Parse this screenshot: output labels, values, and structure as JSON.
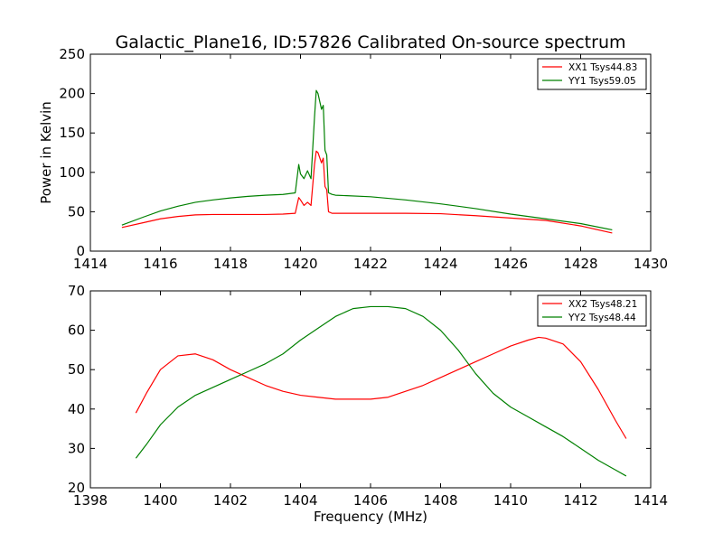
{
  "title": "Galactic_Plane16, ID:57826 Calibrated On-source spectrum",
  "chart_data": [
    {
      "type": "line",
      "title": "Galactic_Plane16, ID:57826 Calibrated On-source spectrum",
      "xlabel": "",
      "ylabel": "Power in Kelvin",
      "xlim": [
        1414,
        1430
      ],
      "ylim": [
        0,
        250
      ],
      "xticks": [
        "1414",
        "1416",
        "1418",
        "1420",
        "1422",
        "1424",
        "1426",
        "1428",
        "1430"
      ],
      "yticks": [
        "0",
        "50",
        "100",
        "150",
        "200",
        "250"
      ],
      "grid": false,
      "legend_position": "top-right",
      "series": [
        {
          "name": "XX1 Tsys44.83",
          "color": "#ff0000",
          "x": [
            1414.9,
            1415.5,
            1416.0,
            1416.5,
            1417.0,
            1417.5,
            1418.0,
            1418.5,
            1419.0,
            1419.5,
            1419.85,
            1419.95,
            1420.0,
            1420.1,
            1420.2,
            1420.3,
            1420.4,
            1420.45,
            1420.5,
            1420.6,
            1420.65,
            1420.7,
            1420.75,
            1420.8,
            1420.9,
            1421.0,
            1422.0,
            1423.0,
            1424.0,
            1425.0,
            1426.0,
            1427.0,
            1428.0,
            1428.9
          ],
          "y": [
            30,
            36,
            41,
            44,
            46,
            46.5,
            46.5,
            46.5,
            46.5,
            47,
            48,
            68,
            65,
            58,
            62,
            58,
            110,
            127,
            125,
            112,
            118,
            82,
            78,
            50,
            48,
            48,
            48,
            48,
            47.5,
            45,
            42,
            39,
            32,
            23
          ]
        },
        {
          "name": "YY1 Tsys59.05",
          "color": "#008000",
          "x": [
            1414.9,
            1415.5,
            1416.0,
            1416.5,
            1417.0,
            1417.5,
            1418.0,
            1418.5,
            1419.0,
            1419.5,
            1419.85,
            1419.95,
            1420.0,
            1420.1,
            1420.2,
            1420.3,
            1420.4,
            1420.45,
            1420.5,
            1420.6,
            1420.65,
            1420.7,
            1420.75,
            1420.8,
            1420.9,
            1421.0,
            1422.0,
            1423.0,
            1424.0,
            1425.0,
            1426.0,
            1427.0,
            1428.0,
            1428.9
          ],
          "y": [
            33,
            43,
            51,
            57,
            62,
            65,
            67.5,
            69.5,
            71,
            72,
            74,
            110,
            98,
            92,
            102,
            92,
            170,
            204,
            200,
            180,
            185,
            128,
            122,
            74,
            72,
            71,
            69,
            65,
            60,
            54,
            47,
            41,
            35,
            27
          ]
        }
      ]
    },
    {
      "type": "line",
      "title": "",
      "xlabel": "Frequency (MHz)",
      "ylabel": "",
      "xlim": [
        1398,
        1414
      ],
      "ylim": [
        20,
        70
      ],
      "xticks": [
        "1398",
        "1400",
        "1402",
        "1404",
        "1406",
        "1408",
        "1410",
        "1412",
        "1414"
      ],
      "yticks": [
        "20",
        "30",
        "40",
        "50",
        "60",
        "70"
      ],
      "grid": false,
      "legend_position": "top-right",
      "series": [
        {
          "name": "XX2 Tsys48.21",
          "color": "#ff0000",
          "x": [
            1399.3,
            1399.6,
            1400.0,
            1400.5,
            1401.0,
            1401.5,
            1402.0,
            1402.5,
            1403.0,
            1403.5,
            1404.0,
            1404.5,
            1405.0,
            1405.5,
            1406.0,
            1406.5,
            1407.0,
            1407.5,
            1408.0,
            1408.5,
            1409.0,
            1409.5,
            1410.0,
            1410.5,
            1410.8,
            1411.0,
            1411.5,
            1412.0,
            1412.5,
            1413.0,
            1413.3
          ],
          "y": [
            39,
            44,
            50,
            53.5,
            54,
            52.5,
            50,
            48,
            46,
            44.5,
            43.5,
            43,
            42.5,
            42.5,
            42.5,
            43,
            44.5,
            46,
            48,
            50,
            52,
            54,
            56,
            57.5,
            58.2,
            58,
            56.5,
            52,
            45,
            37,
            32.5
          ]
        },
        {
          "name": "YY2 Tsys48.44",
          "color": "#008000",
          "x": [
            1399.3,
            1399.6,
            1400.0,
            1400.5,
            1401.0,
            1401.5,
            1402.0,
            1402.5,
            1403.0,
            1403.5,
            1404.0,
            1404.5,
            1405.0,
            1405.5,
            1406.0,
            1406.5,
            1407.0,
            1407.5,
            1408.0,
            1408.5,
            1409.0,
            1409.5,
            1410.0,
            1410.5,
            1411.0,
            1411.5,
            1412.0,
            1412.5,
            1413.0,
            1413.3
          ],
          "y": [
            27.5,
            31,
            36,
            40.5,
            43.5,
            45.5,
            47.5,
            49.5,
            51.5,
            54,
            57.5,
            60.5,
            63.5,
            65.5,
            66,
            66,
            65.5,
            63.5,
            60,
            55,
            49,
            44,
            40.5,
            38,
            35.5,
            33,
            30,
            27,
            24.5,
            23
          ]
        }
      ]
    }
  ]
}
